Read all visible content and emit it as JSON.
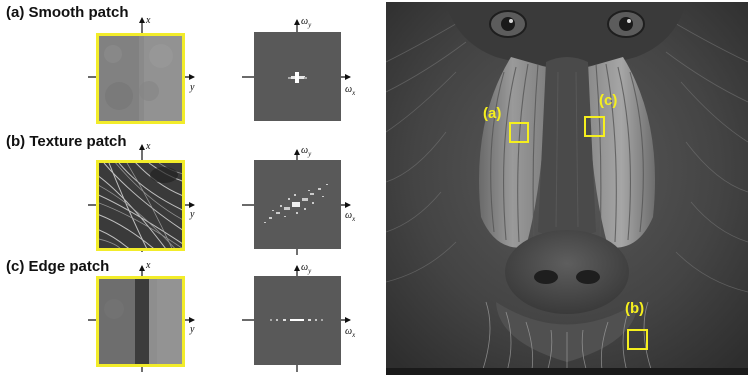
{
  "panels": [
    {
      "id": "a",
      "title": "(a) Smooth patch",
      "kind": "smooth"
    },
    {
      "id": "b",
      "title": "(b) Texture patch",
      "kind": "texture"
    },
    {
      "id": "c",
      "title": "(c) Edge patch",
      "kind": "edge"
    }
  ],
  "axes": {
    "spatial_vertical": "x",
    "spatial_horizontal": "y",
    "freq_vertical_base": "ω",
    "freq_vertical_sub": "y",
    "freq_horizontal_base": "ω",
    "freq_horizontal_sub": "x"
  },
  "image": {
    "regions": [
      {
        "label": "(a)"
      },
      {
        "label": "(c)"
      },
      {
        "label": "(b)"
      }
    ]
  },
  "colors": {
    "highlight": "#f5ef1e",
    "patch_border": "#f2ec2a",
    "spectrum_bg": "#595959"
  }
}
